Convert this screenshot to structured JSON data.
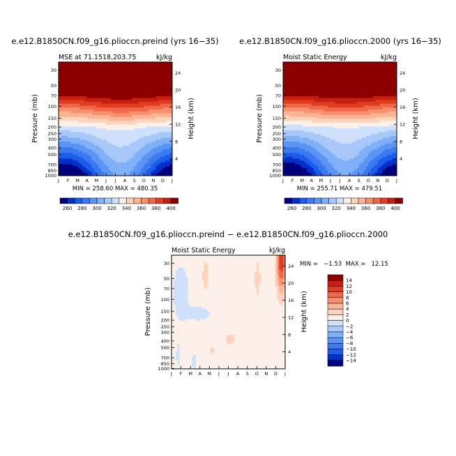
{
  "month_labels": [
    "J",
    "F",
    "M",
    "A",
    "M",
    "J",
    "J",
    "A",
    "S",
    "O",
    "N",
    "D",
    "J"
  ],
  "pressure_ticks": [
    30,
    50,
    70,
    100,
    150,
    200,
    250,
    300,
    400,
    500,
    700,
    850,
    1000
  ],
  "height_ticks": [
    4,
    8,
    12,
    16,
    20,
    24
  ],
  "axis": {
    "ylabel": "Pressure (mb)",
    "y2label": "Height (km)"
  },
  "colors": {
    "mse_scale": [
      "#00007f",
      "#0030c8",
      "#1c5ce8",
      "#3c78f0",
      "#5c94f4",
      "#80b0f8",
      "#a8c8fa",
      "#cfe0fc",
      "#fcf0e8",
      "#fcd4bc",
      "#fcb494",
      "#f89070",
      "#f06848",
      "#e03c20",
      "#c81e10",
      "#8c0000"
    ],
    "diff_scale": [
      "#00007f",
      "#0030c8",
      "#1c5ce8",
      "#3c78f0",
      "#5c94f4",
      "#80b0f8",
      "#a8c8fa",
      "#cfe0fc",
      "#fcf0e8",
      "#fcd4bc",
      "#fcb494",
      "#f89070",
      "#f06848",
      "#e03c20",
      "#c81e10",
      "#8c0000"
    ]
  },
  "chart_data": [
    {
      "type": "contour",
      "title": "e.e12.B1850CN.f09_g16.plioccn.preind (yrs 16−35)",
      "subtitle_left": "MSE at 71.1518,203.75",
      "subtitle_right": "kJ/kg",
      "stats": "MIN = 258.60  MAX = 480.35",
      "xlabel": "",
      "ylabel": "Pressure (mb)",
      "y2label": "Height (km)",
      "legend_labels": [
        "260",
        "280",
        "300",
        "320",
        "340",
        "360",
        "380",
        "400"
      ],
      "contour_levels_kJkg": [
        260,
        270,
        280,
        290,
        300,
        310,
        320,
        330,
        340,
        350,
        360,
        370,
        380,
        390,
        400
      ],
      "summary": "MSE increases with height; ~400+ kJ/kg above 70 mb, ~320-330 kJ/kg near 200 mb, minimum ~260 kJ/kg near surface in Nov-Feb, summer (Jun-Aug) low-level values rise to ~320 kJ/kg."
    },
    {
      "type": "contour",
      "title": "e.e12.B1850CN.f09_g16.plioccn.2000 (yrs 16−35)",
      "subtitle_left": "Moist Static Energy",
      "subtitle_right": "kJ/kg",
      "stats": "MIN = 255.71  MAX = 479.51",
      "xlabel": "",
      "ylabel": "Pressure (mb)",
      "y2label": "Height (km)",
      "legend_labels": [
        "260",
        "280",
        "300",
        "320",
        "340",
        "360",
        "380",
        "400"
      ],
      "contour_levels_kJkg": [
        260,
        270,
        280,
        290,
        300,
        310,
        320,
        330,
        340,
        350,
        360,
        370,
        380,
        390,
        400
      ],
      "summary": "Same structure as the preindustrial case with slightly lower minimum (255.71) and maximum (479.51)."
    },
    {
      "type": "contour",
      "title": "e.e12.B1850CN.f09_g16.plioccn.preind − e.e12.B1850CN.f09_g16.plioccn.2000",
      "subtitle_left": "Moist Static Energy",
      "subtitle_right": "kJ/kg",
      "stats": "MIN =   −1.53  MAX =   12.15",
      "xlabel": "",
      "ylabel": "Pressure (mb)",
      "y2label": "Height (km)",
      "legend_labels": [
        "14",
        "12",
        "10",
        "8",
        "6",
        "4",
        "2",
        "0",
        "−2",
        "−4",
        "−6",
        "−8",
        "−10",
        "−12",
        "−14"
      ],
      "contour_levels_kJkg": [
        -14,
        -12,
        -10,
        -8,
        -6,
        -4,
        -2,
        0,
        2,
        4,
        6,
        8,
        10,
        12,
        14
      ],
      "summary": "Mostly 0 to 2 kJ/kg; maximum ~12 kJ/kg near the top in December; small negative (−2 to 0) patches in Jan-Feb upper levels and near 150 mb spring."
    }
  ]
}
